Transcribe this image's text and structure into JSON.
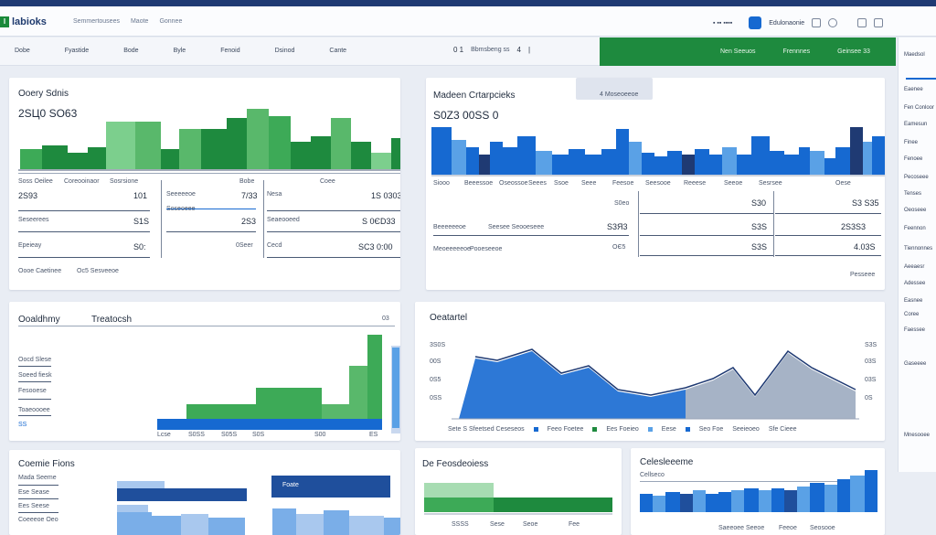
{
  "app": {
    "logo_text": "labioks"
  },
  "topnav": [
    "Semmertousees",
    "Maote",
    "Gonnee"
  ],
  "topright": {
    "label": "Edulonaonie"
  },
  "subnav": [
    "Dobe",
    "Fyastide",
    "Bode",
    "Byle",
    "Fenoid",
    "Dsinod",
    "Cante"
  ],
  "pager": {
    "page": "0 1",
    "label": "Bbmsbeng ss",
    "next": "4",
    "sep": "|"
  },
  "greenbar": [
    "Nen Seeuos",
    "Frennnes",
    "Geinsee 33"
  ],
  "rightpanel": [
    "Maedsol",
    "Eaenee",
    "Fen Conloor",
    "Eamesun",
    "Finee",
    "Fenoee",
    "Pecoseee",
    "Tenses",
    "Oeoseee",
    "Feennon",
    "Tiennonnes",
    "Aeeaesr",
    "Adessee",
    "Easnee",
    "Coree",
    "Faessee",
    "Gaseeee",
    "Mnesooee"
  ],
  "card1": {
    "title": "Ooery Sdnis",
    "value": "2SЦ0 SO63",
    "rows": [
      {
        "label": "Soss Oeilee",
        "c2": "Coreooinaor",
        "c3": "Sosrsione",
        "c4": "Bobe",
        "c5": "Coee"
      },
      {
        "label": "2S93",
        "v1": "101",
        "v2": "7/33",
        "v3": "1S 0303",
        "l2": "Seeeeeoe",
        "l3": "Nesa"
      },
      {
        "label": "Seseerees",
        "v1": "S1S",
        "v2": "2S3",
        "v3": "S 0ЄD33",
        "l2": "Soseoeee",
        "l3": "Seaeooeed"
      },
      {
        "label": "Epeieay",
        "v1": "S0:",
        "v2": "0Seer",
        "v3": "SC3 0:00",
        "l3": "Cecd"
      }
    ],
    "footer": [
      "Oooe Caetinee",
      "Oc5 Sesveeoe"
    ]
  },
  "card2": {
    "title": "Madeen Crtarpcieks",
    "value": "S0Z3 00SS 0",
    "button": "4 Moseoeeoe",
    "axis": [
      "Siooo",
      "Beeessoe",
      "Oseossoe",
      "Seees",
      "Ssoe",
      "Seee",
      "Feesoe",
      "Seesooe",
      "Reeese",
      "Seeoe",
      "Sesrsee",
      "Oese"
    ],
    "rows": [
      {
        "left": "S0eo",
        "mid": "S30",
        "right": "S3 S35"
      },
      {
        "l1": "Beeeeeeoe",
        "l2": "Seesee Seooeseee",
        "v1": "S3Я3",
        "v2": "S3S",
        "v3": "2S3S3"
      },
      {
        "l1": "Meoeeeeeoe",
        "l2": "Pooeseeoe",
        "v1": "OЄ5",
        "v2": "S3S",
        "v3": "4.03S"
      }
    ],
    "footer": "Pesseee"
  },
  "card3": {
    "title": "Ooaldhmy",
    "subtitle": "Treatocsh",
    "corner": "03",
    "rows": [
      "Oocd Slese",
      "Soeed fiesk",
      "Fesooese",
      "Toaeoooee",
      "SS"
    ],
    "axis": [
      "Lcse",
      "S0SS",
      "S05S",
      "S0S",
      "S00",
      "ES"
    ]
  },
  "card4": {
    "title": "Oeatartel",
    "yleft": [
      "3S0S",
      "00S",
      "0S5",
      "0SS"
    ],
    "yright": [
      "S3S",
      "03S",
      "03S",
      "0S"
    ],
    "legend": [
      "Sete S Sfeetsed Ceseseos",
      "Feeo Foetee",
      "Ees Foeieo",
      "Eese",
      "Seo Foe",
      "Seeieoeo",
      "Sfe Cieee"
    ]
  },
  "card5": {
    "title": "Coemie Fions",
    "rows": [
      "Mada Seeme",
      "Ese Sease",
      "Ees Seese",
      "Coeeeoe Oeo"
    ],
    "button": "Foate"
  },
  "card6": {
    "title": "De Feosdeoiess",
    "axis": [
      "SSSS",
      "Sese",
      "Seoe",
      "Fee"
    ]
  },
  "card7": {
    "title": "Celesleeeme",
    "sub": "Cellseco",
    "axis": [
      "Saeeoee Seeoe",
      "Feeoe",
      "Seosooe"
    ]
  },
  "colors": {
    "green": "#1e8a3e",
    "lightgreen": "#59b86b",
    "blue": "#1669d1",
    "lightblue": "#5aa1e6",
    "navy": "#1f3a73"
  }
}
